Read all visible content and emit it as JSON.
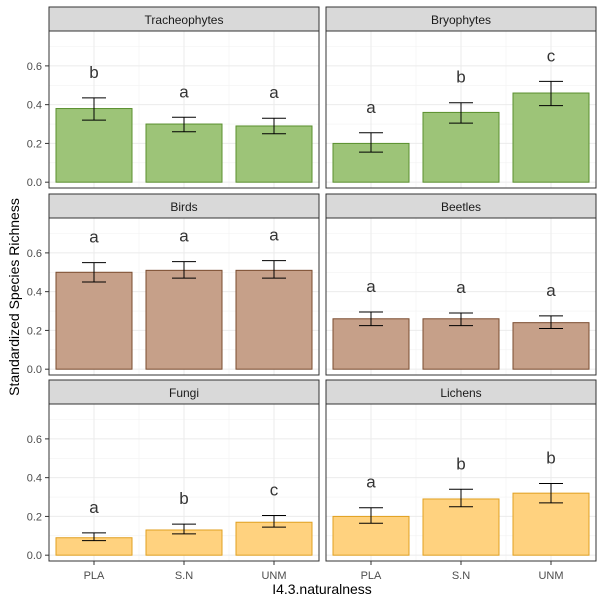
{
  "chart_data": {
    "type": "bar",
    "xlabel": "I4.3.naturalness",
    "ylabel": "Standardized Species Richness",
    "categories": [
      "PLA",
      "S.N",
      "UNM"
    ],
    "ylim": [
      -0.03,
      0.78
    ],
    "yticks": [
      0.0,
      0.2,
      0.4,
      0.6
    ],
    "ytick_labels": [
      "0.0",
      "0.2",
      "0.4",
      "0.6"
    ],
    "grid": true,
    "facets": [
      {
        "title": "Tracheophytes",
        "color": "#9DC478",
        "stroke": "#5A8F2E",
        "values": [
          0.38,
          0.3,
          0.29
        ],
        "error_low": [
          0.32,
          0.26,
          0.25
        ],
        "error_high": [
          0.435,
          0.335,
          0.33
        ],
        "letters": [
          "b",
          "a",
          "a"
        ]
      },
      {
        "title": "Bryophytes",
        "color": "#9DC478",
        "stroke": "#5A8F2E",
        "values": [
          0.2,
          0.36,
          0.46
        ],
        "error_low": [
          0.155,
          0.305,
          0.395
        ],
        "error_high": [
          0.255,
          0.41,
          0.52
        ],
        "letters": [
          "a",
          "b",
          "c"
        ]
      },
      {
        "title": "Birds",
        "color": "#C6A089",
        "stroke": "#7A4B2E",
        "values": [
          0.5,
          0.51,
          0.51
        ],
        "error_low": [
          0.45,
          0.47,
          0.47
        ],
        "error_high": [
          0.55,
          0.555,
          0.56
        ],
        "letters": [
          "a",
          "a",
          "a"
        ]
      },
      {
        "title": "Beetles",
        "color": "#C6A089",
        "stroke": "#7A4B2E",
        "values": [
          0.26,
          0.26,
          0.24
        ],
        "error_low": [
          0.225,
          0.225,
          0.21
        ],
        "error_high": [
          0.295,
          0.29,
          0.275
        ],
        "letters": [
          "a",
          "a",
          "a"
        ]
      },
      {
        "title": "Fungi",
        "color": "#FFD27F",
        "stroke": "#E0A020",
        "values": [
          0.09,
          0.13,
          0.17
        ],
        "error_low": [
          0.075,
          0.11,
          0.145
        ],
        "error_high": [
          0.115,
          0.16,
          0.205
        ],
        "letters": [
          "a",
          "b",
          "c"
        ]
      },
      {
        "title": "Lichens",
        "color": "#FFD27F",
        "stroke": "#E0A020",
        "values": [
          0.2,
          0.29,
          0.32
        ],
        "error_low": [
          0.165,
          0.25,
          0.27
        ],
        "error_high": [
          0.245,
          0.34,
          0.37
        ],
        "letters": [
          "a",
          "b",
          "b"
        ]
      }
    ]
  }
}
